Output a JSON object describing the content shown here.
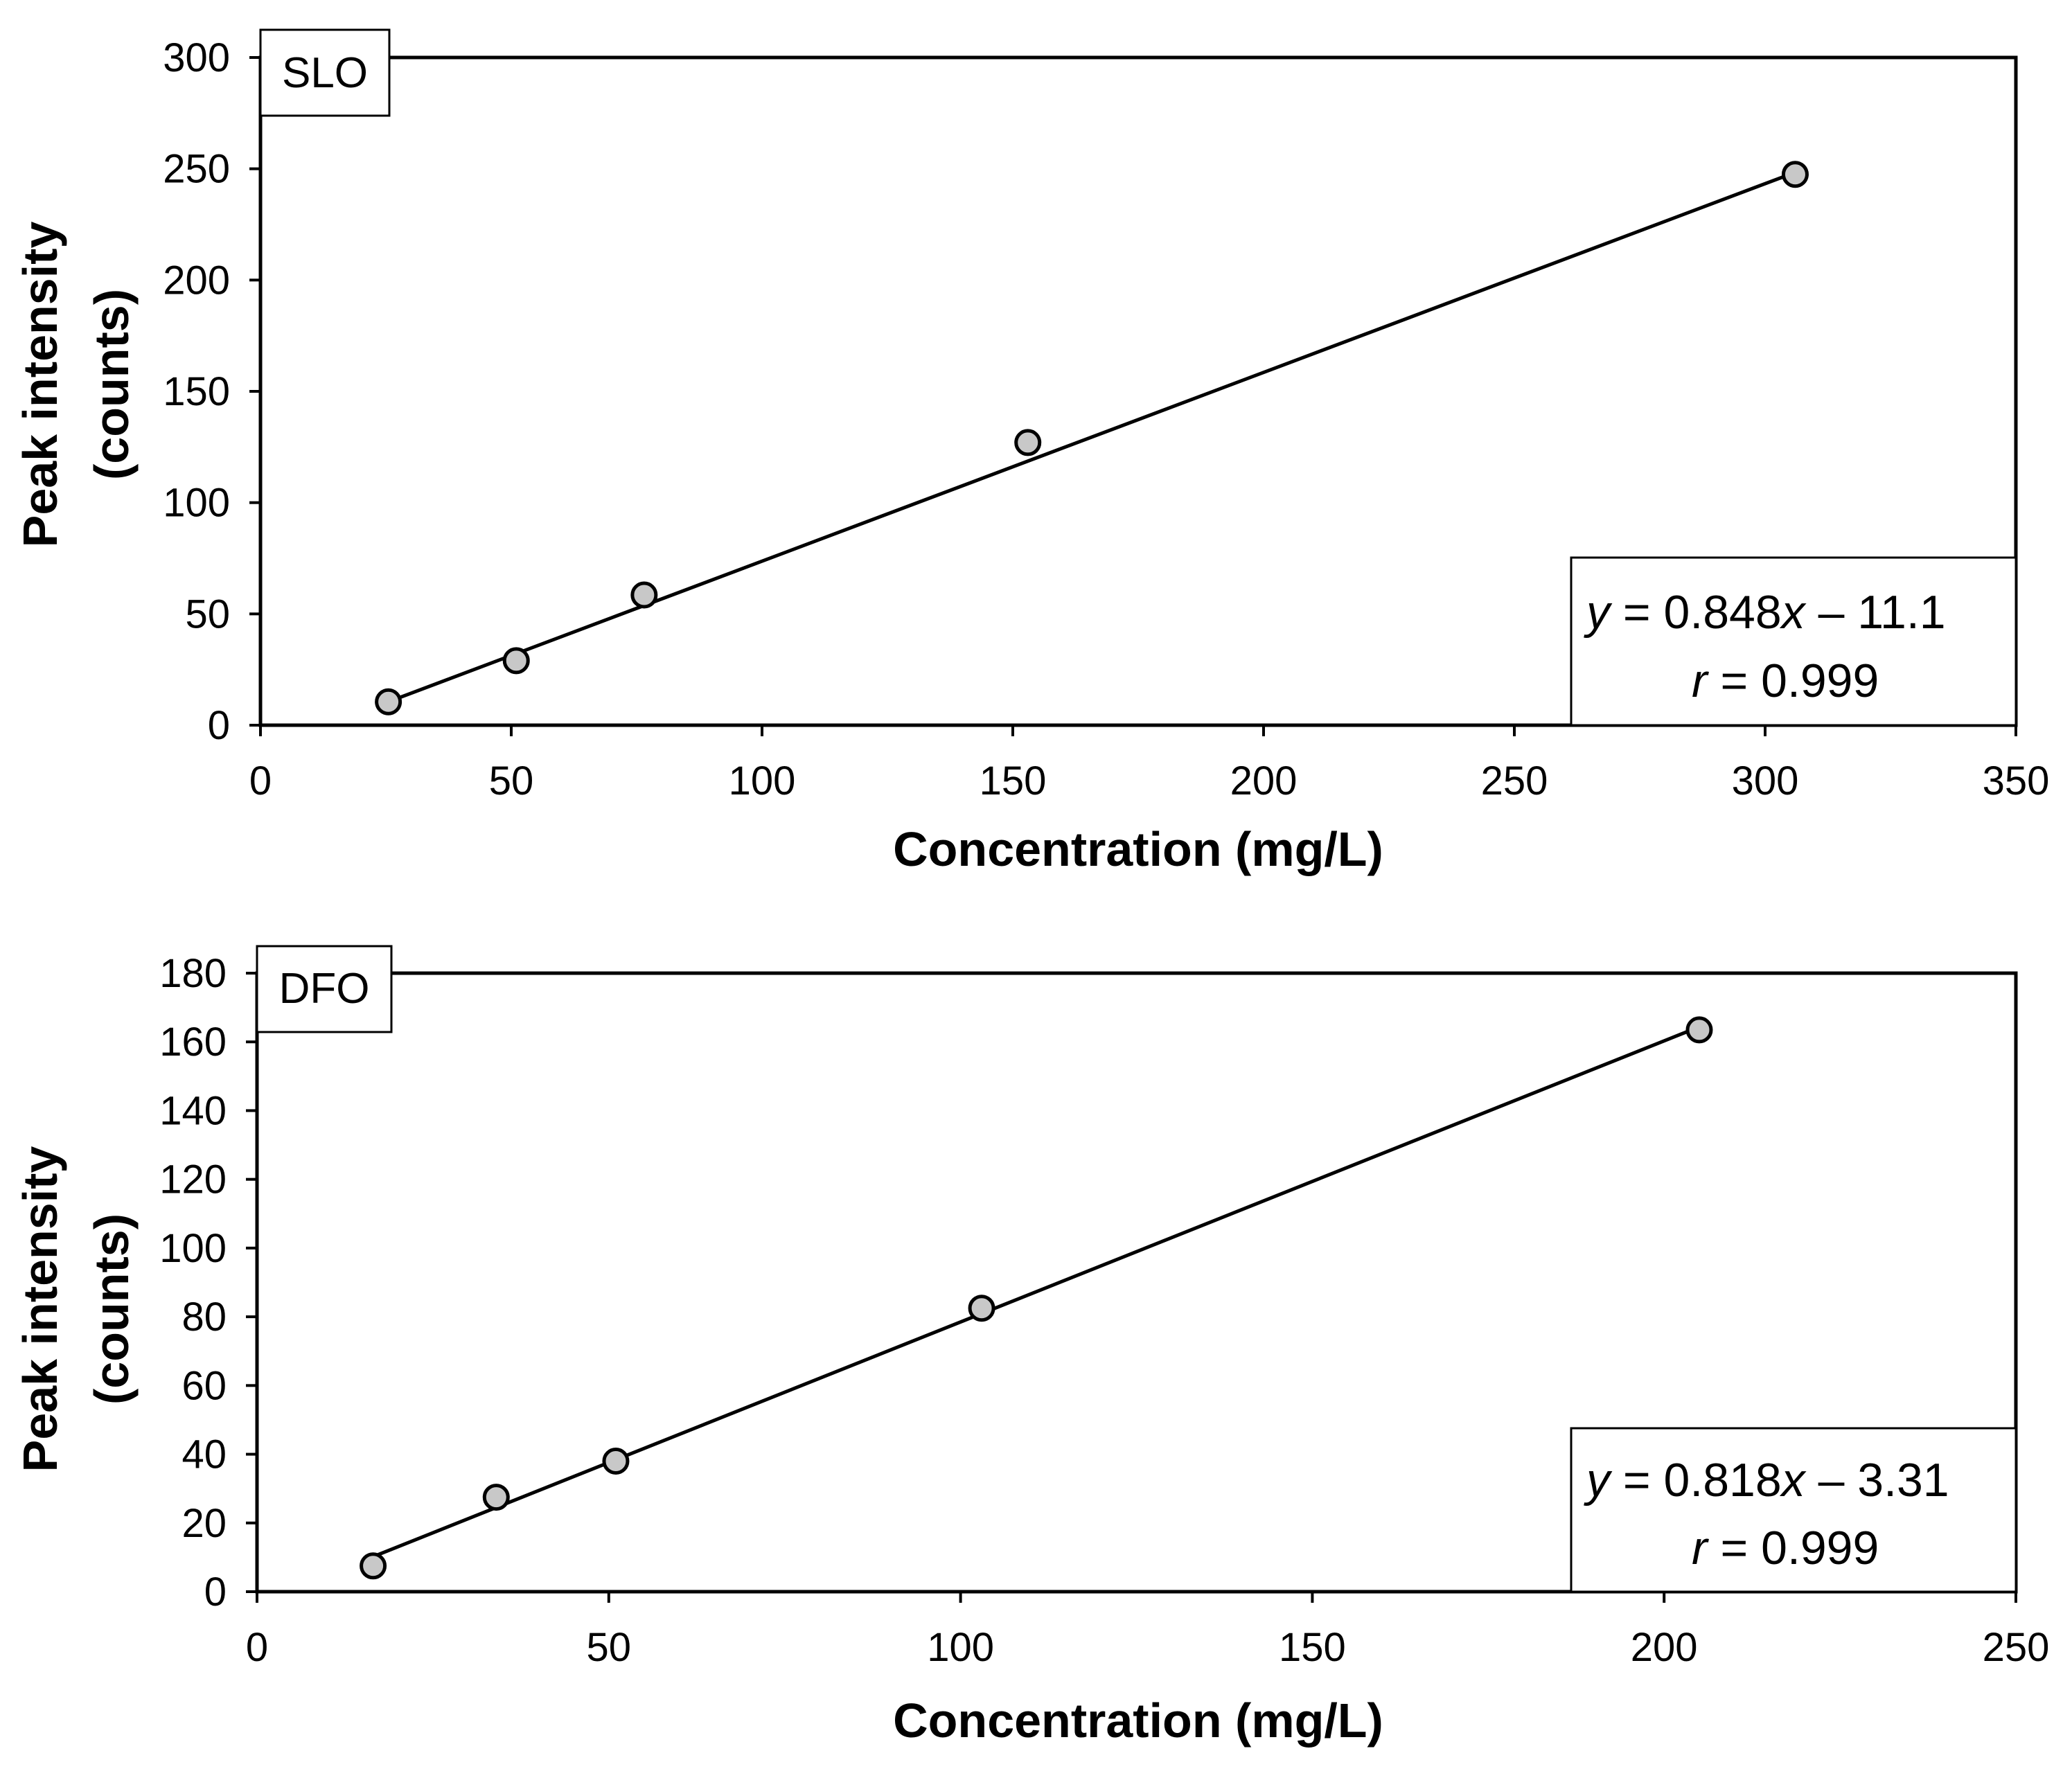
{
  "chart_data": [
    {
      "type": "scatter",
      "panel_label": "SLO",
      "xlabel": "Concentration (mg/L)",
      "ylabel_line1": "Peak intensity",
      "ylabel_line2": "(counts)",
      "xlim": [
        0,
        350
      ],
      "ylim": [
        0,
        300
      ],
      "x_ticks": [
        0,
        50,
        100,
        150,
        200,
        250,
        300,
        350
      ],
      "y_ticks": [
        0,
        50,
        100,
        150,
        200,
        250,
        300
      ],
      "x_tick_labels": [
        "0",
        "50",
        "100",
        "150",
        "200",
        "250",
        "300",
        "350"
      ],
      "y_tick_labels": [
        "0",
        "50",
        "100",
        "150",
        "200",
        "250",
        "300"
      ],
      "series": [
        {
          "name": "SLO",
          "x": [
            25.5,
            51,
            76.5,
            153,
            306
          ],
          "y": [
            10.5,
            29,
            58.5,
            127,
            247.5
          ]
        }
      ],
      "fit": {
        "slope": 0.848,
        "intercept": -11.1,
        "x_range": [
          25.5,
          306
        ]
      },
      "equation": {
        "y_var": "y",
        "y_rest": " = 0.848",
        "x_var": "x",
        "tail": " – 11.1",
        "r_var": "r",
        "r_rest": " = 0.999"
      },
      "colors": {
        "marker_fill": "#c8c8c8",
        "marker_stroke": "#000000",
        "line": "#000000"
      }
    },
    {
      "type": "scatter",
      "panel_label": "DFO",
      "xlabel": "Concentration (mg/L)",
      "ylabel_line1": "Peak intensity",
      "ylabel_line2": "(counts)",
      "xlim": [
        0,
        250
      ],
      "ylim": [
        0,
        180
      ],
      "x_ticks": [
        0,
        50,
        100,
        150,
        200,
        250
      ],
      "y_ticks": [
        0,
        20,
        40,
        60,
        80,
        100,
        120,
        140,
        160,
        180
      ],
      "x_tick_labels": [
        "0",
        "50",
        "100",
        "150",
        "200",
        "250"
      ],
      "y_tick_labels": [
        "0",
        "20",
        "40",
        "60",
        "80",
        "100",
        "120",
        "140",
        "160",
        "180"
      ],
      "series": [
        {
          "name": "DFO",
          "x": [
            16.5,
            34,
            51,
            103,
            205
          ],
          "y": [
            7.5,
            27.5,
            38,
            82.5,
            163.5
          ]
        }
      ],
      "fit": {
        "slope": 0.818,
        "intercept": -3.31,
        "x_range": [
          16.5,
          205
        ]
      },
      "equation": {
        "y_var": "y",
        "y_rest": " = 0.818",
        "x_var": "x",
        "tail": " – 3.31",
        "r_var": "r",
        "r_rest": " = 0.999"
      },
      "colors": {
        "marker_fill": "#c8c8c8",
        "marker_stroke": "#000000",
        "line": "#000000"
      }
    }
  ]
}
